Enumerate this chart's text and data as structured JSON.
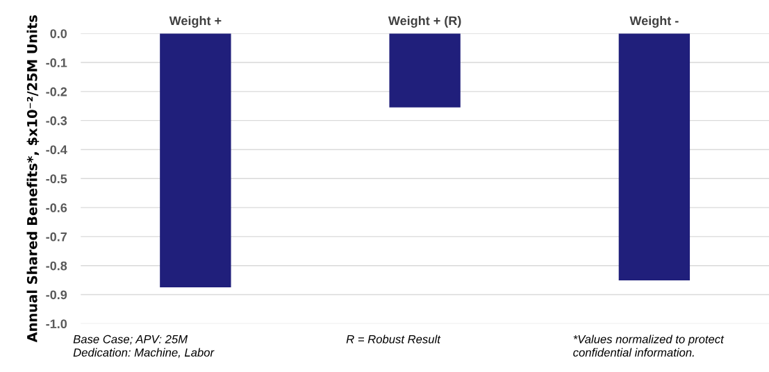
{
  "chart_data": {
    "type": "bar",
    "ylabel": "Annual Shared Benefits*, $x10⁻²/25M Units",
    "categories": [
      "Weight +",
      "Weight + (R)",
      "Weight -"
    ],
    "values": [
      -0.875,
      -0.255,
      -0.851
    ],
    "color": "#201f7b",
    "ylim": [
      -1.0,
      0.0
    ],
    "yticks": [
      {
        "value": 0.0,
        "label": "0.0"
      },
      -0.1,
      -0.2,
      -0.3,
      -0.4,
      -0.5,
      -0.6,
      -0.7,
      -0.8,
      -0.9,
      {
        "value": -1.0,
        "label": "-1.0"
      }
    ],
    "grid": "y",
    "annotations": [
      "Base Case; APV: 25M\nDedication: Machine, Labor",
      "R = Robust Result",
      "*Values normalized to protect\nconfidential information."
    ]
  }
}
